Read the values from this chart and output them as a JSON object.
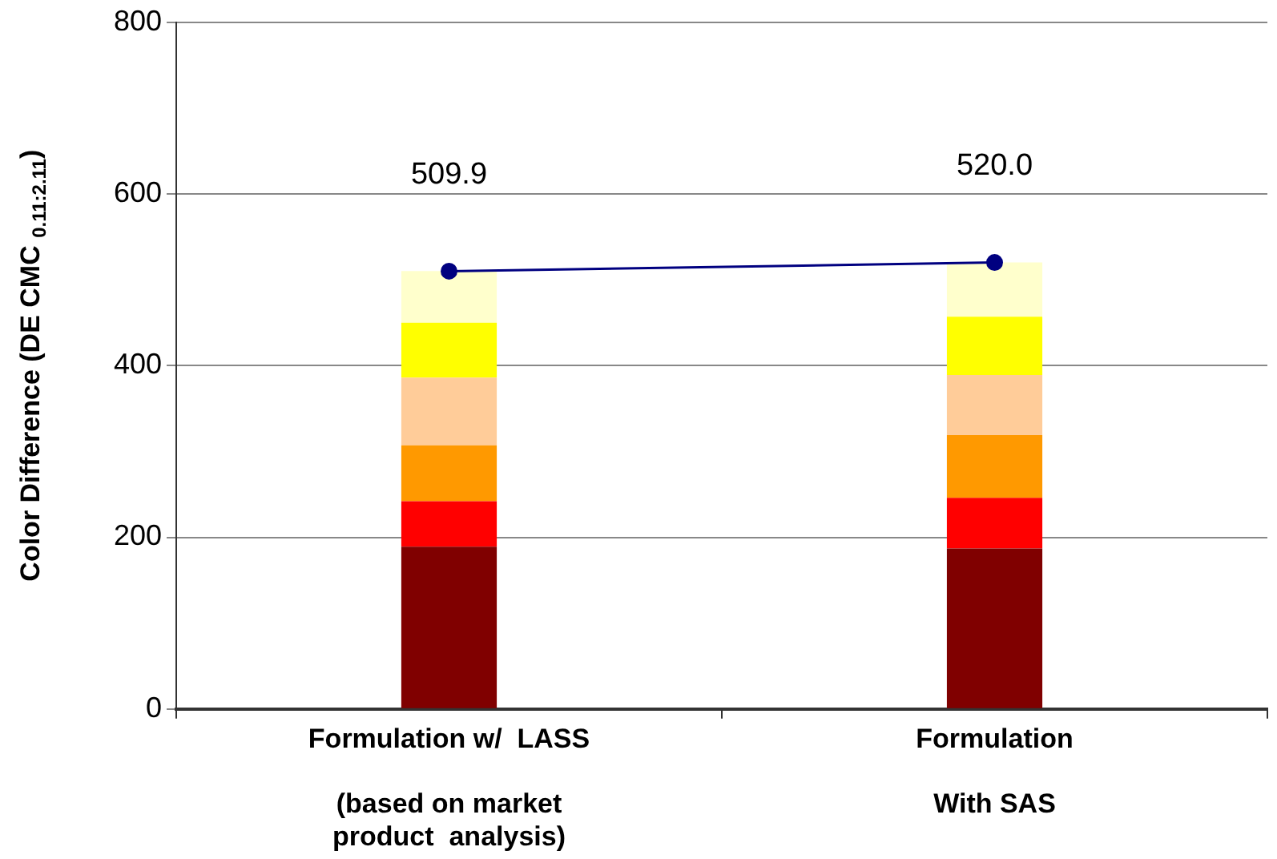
{
  "chart_data": {
    "type": "bar",
    "stacked": true,
    "ylabel": "Color Difference (DE CMC $_{0.11:2.11}$)",
    "categories": [
      "Formulation w/  LASS\n\n(based on market\nproduct  analysis)",
      "Formulation\n\nWith SAS"
    ],
    "series": [
      {
        "color": "#800000",
        "values": [
          189,
          187
        ]
      },
      {
        "color": "#ff0000",
        "values": [
          53,
          59
        ]
      },
      {
        "color": "#ff9900",
        "values": [
          65,
          73
        ]
      },
      {
        "color": "#ffcc99",
        "values": [
          79,
          70
        ]
      },
      {
        "color": "#ffff00",
        "values": [
          64,
          68
        ]
      },
      {
        "color": "#ffffcc",
        "values": [
          60,
          63
        ]
      },
      {
        "type": "line",
        "color": "#000080",
        "values": [
          509.9,
          520.0
        ],
        "value_labels": [
          "509.9",
          "520.0"
        ]
      }
    ],
    "marker": "circle",
    "ylim": [
      0,
      800
    ],
    "yticks": [
      0,
      200,
      400,
      600,
      800
    ],
    "grid": "y",
    "legend": false
  }
}
